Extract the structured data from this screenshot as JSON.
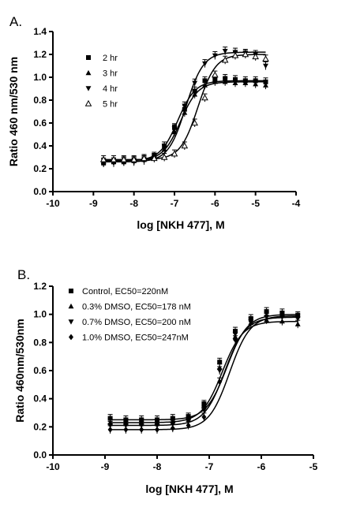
{
  "chart_data": [
    {
      "type": "scatter",
      "panel_label": "A.",
      "xlabel": "log [NKH 477], M",
      "ylabel": "Ratio 460 nm/530 nm",
      "xlim": [
        -10,
        -4
      ],
      "ylim": [
        0,
        1.4
      ],
      "xticks": [
        "-10",
        "-9",
        "-8",
        "-7",
        "-6",
        "-5",
        "-4"
      ],
      "yticks": [
        "0.0",
        "0.2",
        "0.4",
        "0.6",
        "0.8",
        "1.0",
        "1.2",
        "1.4"
      ],
      "legend_position": "top-left",
      "series": [
        {
          "name": "2 hr",
          "marker": "square",
          "curve": {
            "bottom": 0.27,
            "top": 0.97,
            "logec50": -6.92,
            "hill": 2.0
          },
          "x": [
            -8.75,
            -8.5,
            -8.25,
            -8.0,
            -7.75,
            -7.5,
            -7.25,
            -7.0,
            -6.75,
            -6.5,
            -6.25,
            -6.0,
            -5.75,
            -5.5,
            -5.25,
            -5.0,
            -4.75
          ],
          "y": [
            0.25,
            0.26,
            0.26,
            0.27,
            0.28,
            0.31,
            0.4,
            0.56,
            0.72,
            0.88,
            0.97,
            0.98,
            0.99,
            0.98,
            0.97,
            0.97,
            0.96
          ]
        },
        {
          "name": "3 hr",
          "marker": "triangle-up",
          "curve": {
            "bottom": 0.27,
            "top": 0.96,
            "logec50": -6.85,
            "hill": 2.0
          },
          "x": [
            -8.75,
            -8.5,
            -8.25,
            -8.0,
            -7.75,
            -7.5,
            -7.25,
            -7.0,
            -6.75,
            -6.5,
            -6.25,
            -6.0,
            -5.75,
            -5.5,
            -5.25,
            -5.0,
            -4.75
          ],
          "y": [
            0.26,
            0.26,
            0.27,
            0.27,
            0.28,
            0.3,
            0.37,
            0.52,
            0.69,
            0.85,
            0.93,
            0.96,
            0.96,
            0.95,
            0.95,
            0.94,
            0.93
          ]
        },
        {
          "name": "4 hr",
          "marker": "triangle-down",
          "curve": {
            "bottom": 0.26,
            "top": 1.22,
            "logec50": -6.72,
            "hill": 2.0
          },
          "x": [
            -8.75,
            -8.5,
            -8.25,
            -8.0,
            -7.75,
            -7.5,
            -7.25,
            -7.0,
            -6.75,
            -6.5,
            -6.25,
            -6.0,
            -5.75,
            -5.5,
            -5.25,
            -5.0,
            -4.75
          ],
          "y": [
            0.25,
            0.25,
            0.26,
            0.26,
            0.27,
            0.3,
            0.4,
            0.55,
            0.75,
            0.95,
            1.12,
            1.19,
            1.23,
            1.22,
            1.21,
            1.2,
            1.1
          ]
        },
        {
          "name": "5 hr",
          "marker": "triangle-up-open",
          "curve": {
            "bottom": 0.28,
            "top": 1.2,
            "logec50": -6.42,
            "hill": 2.0
          },
          "x": [
            -8.75,
            -8.5,
            -8.25,
            -8.0,
            -7.75,
            -7.5,
            -7.25,
            -7.0,
            -6.75,
            -6.5,
            -6.25,
            -6.0,
            -5.75,
            -5.5,
            -5.25,
            -5.0,
            -4.75
          ],
          "y": [
            0.28,
            0.28,
            0.28,
            0.28,
            0.29,
            0.29,
            0.3,
            0.33,
            0.4,
            0.6,
            0.82,
            1.02,
            1.15,
            1.19,
            1.2,
            1.18,
            1.16
          ]
        }
      ]
    },
    {
      "type": "scatter",
      "panel_label": "B.",
      "xlabel": "log [NKH 477], M",
      "ylabel": "Ratio 460nm/530nm",
      "xlim": [
        -10,
        -5
      ],
      "ylim": [
        0,
        1.2
      ],
      "xticks": [
        "-10",
        "-9",
        "-8",
        "-7",
        "-6",
        "-5"
      ],
      "yticks": [
        "0.0",
        "0.2",
        "0.4",
        "0.6",
        "0.8",
        "1.0",
        "1.2"
      ],
      "legend_position": "top-left",
      "series": [
        {
          "name": "Control, EC50=220nM",
          "marker": "square",
          "curve": {
            "bottom": 0.25,
            "top": 1.0,
            "logec50": -6.66,
            "hill": 2.2
          },
          "x": [
            -8.9,
            -8.6,
            -8.3,
            -8.0,
            -7.7,
            -7.4,
            -7.1,
            -6.8,
            -6.5,
            -6.2,
            -5.9,
            -5.6,
            -5.3
          ],
          "y": [
            0.26,
            0.25,
            0.25,
            0.25,
            0.26,
            0.27,
            0.36,
            0.66,
            0.88,
            0.97,
            1.02,
            1.01,
            0.99
          ]
        },
        {
          "name": "0.3% DMSO, EC50=178 nM",
          "marker": "triangle-up",
          "curve": {
            "bottom": 0.23,
            "top": 0.95,
            "logec50": -6.75,
            "hill": 2.2
          },
          "x": [
            -8.9,
            -8.6,
            -8.3,
            -8.0,
            -7.7,
            -7.4,
            -7.1,
            -6.8,
            -6.5,
            -6.2,
            -5.9,
            -5.6,
            -5.3
          ],
          "y": [
            0.23,
            0.23,
            0.23,
            0.23,
            0.24,
            0.26,
            0.35,
            0.62,
            0.84,
            0.94,
            0.96,
            0.95,
            0.93
          ]
        },
        {
          "name": "0.7% DMSO, EC50=200 nM",
          "marker": "triangle-down",
          "curve": {
            "bottom": 0.21,
            "top": 0.98,
            "logec50": -6.7,
            "hill": 2.2
          },
          "x": [
            -8.9,
            -8.6,
            -8.3,
            -8.0,
            -7.7,
            -7.4,
            -7.1,
            -6.8,
            -6.5,
            -6.2,
            -5.9,
            -5.6,
            -5.3
          ],
          "y": [
            0.21,
            0.21,
            0.21,
            0.21,
            0.22,
            0.24,
            0.32,
            0.6,
            0.86,
            0.95,
            0.98,
            0.98,
            0.97
          ]
        },
        {
          "name": "1.0% DMSO, EC50=247nM",
          "marker": "diamond",
          "curve": {
            "bottom": 0.18,
            "top": 0.99,
            "logec50": -6.61,
            "hill": 2.2
          },
          "x": [
            -8.9,
            -8.6,
            -8.3,
            -8.0,
            -7.7,
            -7.4,
            -7.1,
            -6.8,
            -6.5,
            -6.2,
            -5.9,
            -5.6,
            -5.3
          ],
          "y": [
            0.18,
            0.18,
            0.18,
            0.18,
            0.19,
            0.21,
            0.27,
            0.52,
            0.82,
            0.95,
            0.99,
            0.99,
            0.98
          ]
        }
      ]
    }
  ]
}
